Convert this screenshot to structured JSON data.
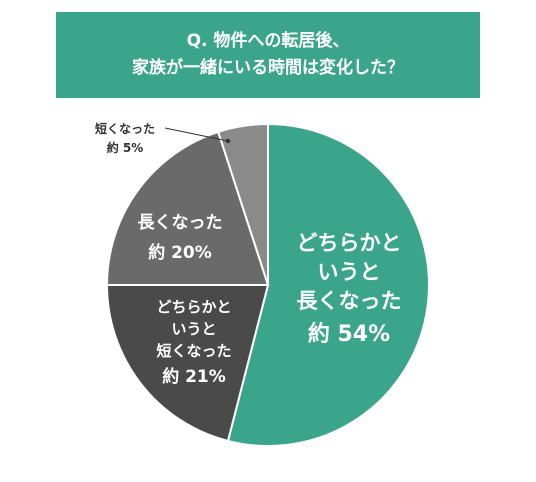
{
  "title": {
    "line1": "Q. 物件への転居後、",
    "line2": "家族が一緒にいる時間は変化した？"
  },
  "chart_data": {
    "type": "pie",
    "start": "top",
    "direction": "clockwise",
    "slices": [
      {
        "lines": [
          "どちらかと",
          "いうと",
          "長くなった"
        ],
        "value_label": "約 54%",
        "value": 54,
        "color": "#3aa58a"
      },
      {
        "lines": [
          "どちらかと",
          "いうと",
          "短くなった"
        ],
        "value_label": "約 21%",
        "value": 21,
        "color": "#4a4a4a"
      },
      {
        "lines": [
          "長くなった"
        ],
        "value_label": "約 20%",
        "value": 20,
        "color": "#6a6a6a"
      },
      {
        "lines": [
          "短くなった"
        ],
        "value_label": "約 5%",
        "value": 5,
        "color": "#8a8a8a"
      }
    ]
  }
}
